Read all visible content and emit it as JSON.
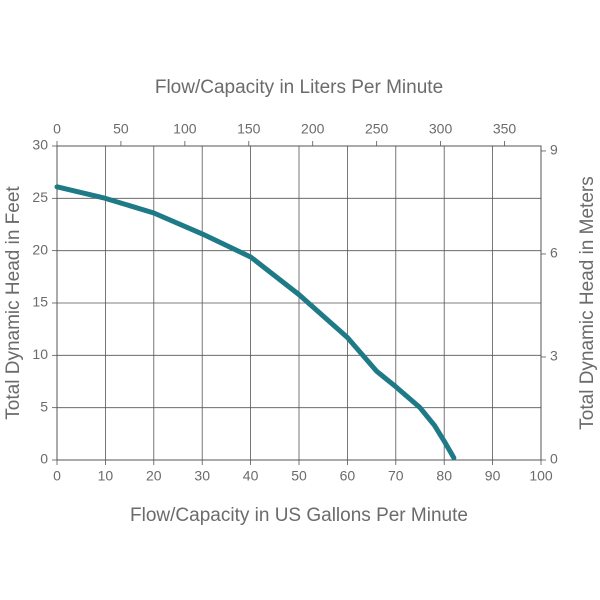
{
  "chart_data": {
    "type": "line",
    "xlabel": "Flow/Capacity in US Gallons Per Minute",
    "x2label": "Flow/Capacity in Liters Per Minute",
    "ylabel": "Total Dynamic Head in Feet",
    "y2label": "Total Dynamic Head in Meters",
    "xlim": [
      0,
      100
    ],
    "xticks": [
      0,
      10,
      20,
      30,
      40,
      50,
      60,
      70,
      80,
      90,
      100
    ],
    "x2lim": [
      0,
      378.54
    ],
    "x2ticks": [
      0,
      50,
      100,
      150,
      200,
      250,
      300,
      350
    ],
    "ylim": [
      0,
      30
    ],
    "yticks": [
      0,
      5,
      10,
      15,
      20,
      25,
      30
    ],
    "y2lim": [
      0,
      9.144
    ],
    "y2ticks": [
      0,
      3,
      6,
      9
    ],
    "grid": true,
    "series": [
      {
        "color": "#1f7a87",
        "x": [
          0,
          10,
          20,
          30,
          40,
          50,
          60,
          66,
          70,
          75,
          78,
          80,
          82
        ],
        "values": [
          26.1,
          25,
          23.6,
          21.6,
          19.4,
          15.8,
          11.7,
          8.5,
          7,
          5,
          3.3,
          1.8,
          0.2
        ]
      }
    ]
  }
}
